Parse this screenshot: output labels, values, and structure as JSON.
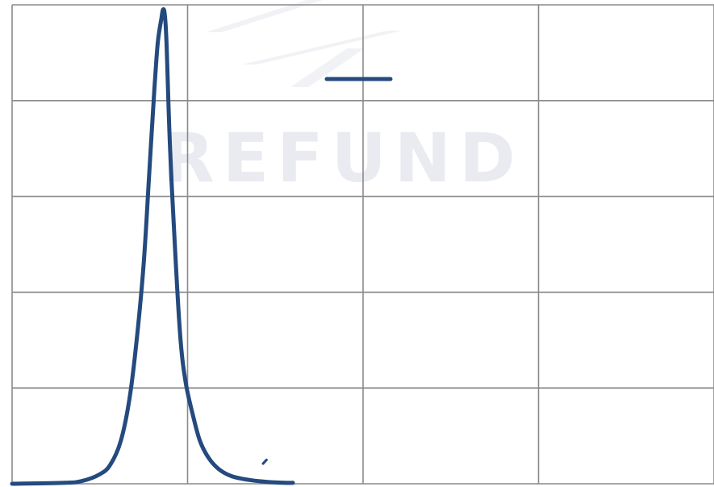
{
  "chart_data": {
    "type": "line",
    "title": "",
    "xlabel": "",
    "ylabel": "",
    "xlim": [
      0,
      4
    ],
    "ylim": [
      0,
      5
    ],
    "x_ticks": [
      0,
      1,
      2,
      3,
      4
    ],
    "y_ticks": [
      0,
      1,
      2,
      3,
      4,
      5
    ],
    "grid": true,
    "legend": {
      "position": "top-center",
      "entries": [
        {
          "label": ""
        }
      ]
    },
    "series": [
      {
        "color": "#244a7e",
        "x": [
          0.0,
          0.3,
          0.4,
          0.5,
          0.56,
          0.62,
          0.67,
          0.71,
          0.75,
          0.78,
          0.81,
          0.83,
          0.85,
          0.86,
          0.87,
          0.88,
          0.9,
          0.93,
          0.96,
          0.99,
          1.03,
          1.07,
          1.12,
          1.18,
          1.25,
          1.35,
          1.45,
          1.55,
          1.6
        ],
        "y": [
          0.0,
          0.01,
          0.03,
          0.1,
          0.2,
          0.45,
          0.9,
          1.5,
          2.3,
          3.2,
          4.1,
          4.6,
          4.85,
          4.95,
          4.9,
          4.6,
          3.5,
          2.4,
          1.5,
          1.05,
          0.72,
          0.45,
          0.27,
          0.15,
          0.08,
          0.04,
          0.02,
          0.01,
          0.01
        ]
      }
    ],
    "stray_mark": {
      "x": [
        1.43,
        1.45
      ],
      "y": [
        0.21,
        0.25
      ]
    }
  },
  "watermark": {
    "text": "REFUND",
    "color": "#d8dce6"
  }
}
